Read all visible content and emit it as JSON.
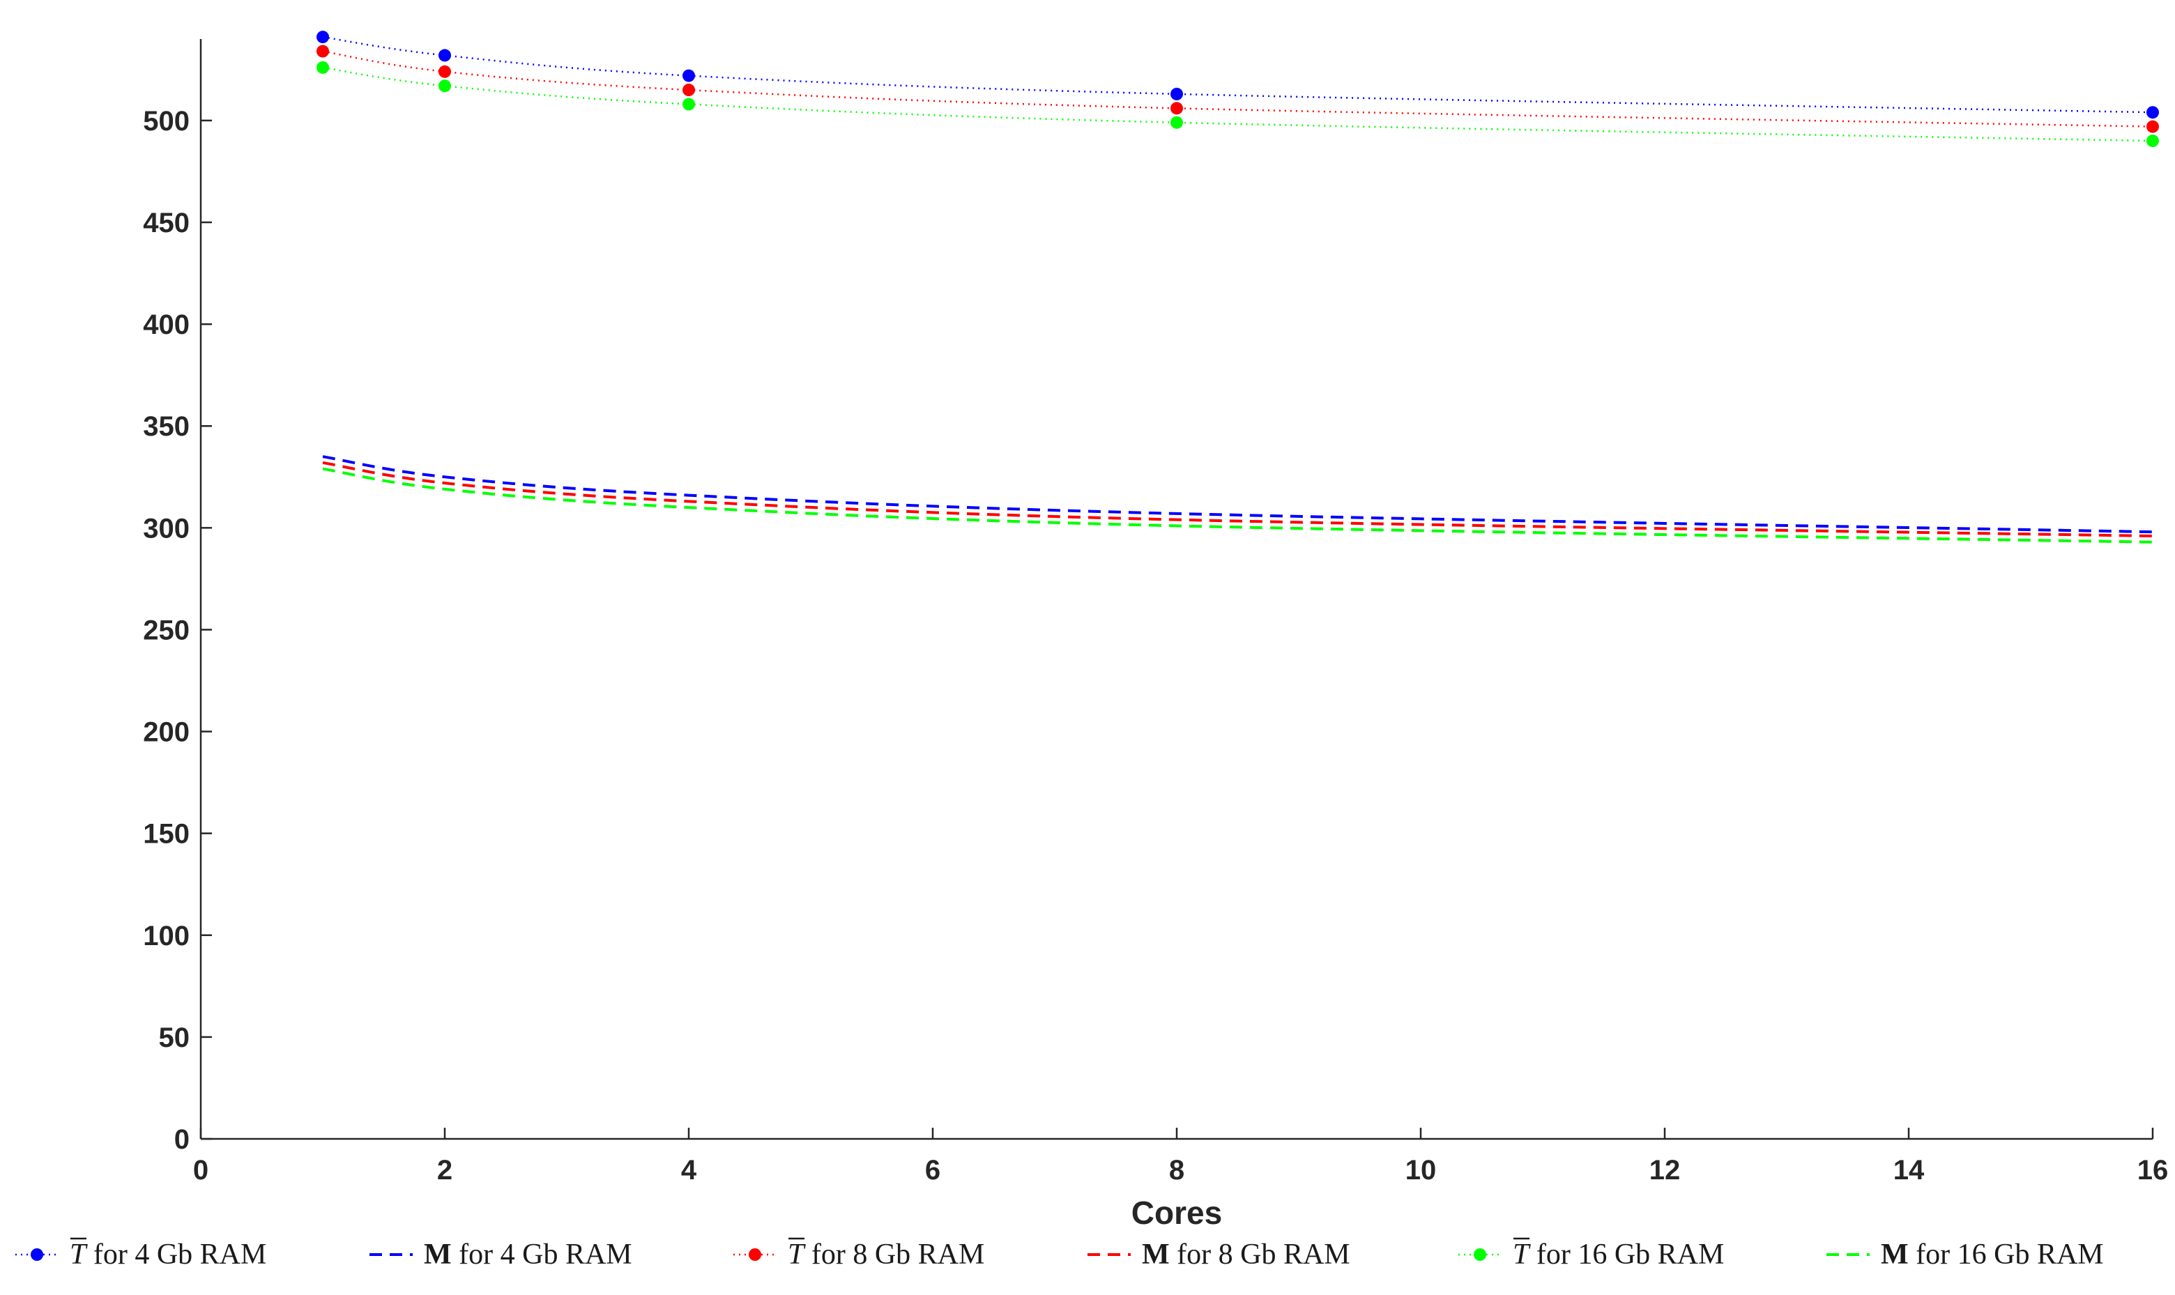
{
  "chart_data": {
    "type": "line",
    "xlabel": "Cores",
    "ylabel": "",
    "xlim": [
      0,
      16
    ],
    "ylim": [
      0,
      540
    ],
    "x_ticks": [
      0,
      2,
      4,
      6,
      8,
      10,
      12,
      14,
      16
    ],
    "y_ticks": [
      0,
      50,
      100,
      150,
      200,
      250,
      300,
      350,
      400,
      450,
      500
    ],
    "grid": false,
    "legend_position": "bottom",
    "x": [
      1,
      2,
      4,
      8,
      16
    ],
    "series": [
      {
        "name": "T for 4 Gb RAM",
        "symbol": "T",
        "rest": " for 4 Gb RAM",
        "color": "#0000ff",
        "style": "dotted-markers",
        "values": [
          541,
          532,
          522,
          513,
          504
        ]
      },
      {
        "name": "M for 4 Gb RAM",
        "symbol": "M",
        "rest": " for 4 Gb RAM",
        "color": "#0000ff",
        "style": "dashed",
        "values": [
          335,
          325,
          316,
          307,
          298
        ]
      },
      {
        "name": "T for 8 Gb RAM",
        "symbol": "T",
        "rest": " for 8 Gb RAM",
        "color": "#ff0000",
        "style": "dotted-markers",
        "values": [
          534,
          524,
          515,
          506,
          497
        ]
      },
      {
        "name": "M for 8 Gb RAM",
        "symbol": "M",
        "rest": " for 8 Gb RAM",
        "color": "#ff0000",
        "style": "dashed",
        "values": [
          332,
          322,
          313,
          304,
          296
        ]
      },
      {
        "name": "T for 16 Gb RAM",
        "symbol": "T",
        "rest": " for 16 Gb RAM",
        "color": "#00ff00",
        "style": "dotted-markers",
        "values": [
          526,
          517,
          508,
          499,
          490
        ]
      },
      {
        "name": "M for 16 Gb RAM",
        "symbol": "M",
        "rest": " for 16 Gb RAM",
        "color": "#00ff00",
        "style": "dashed",
        "values": [
          329,
          319,
          310,
          301,
          293
        ]
      }
    ]
  }
}
